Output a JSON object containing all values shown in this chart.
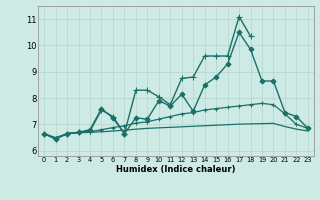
{
  "xlabel": "Humidex (Indice chaleur)",
  "background_color": "#ceeae4",
  "grid_color": "#b8d8d2",
  "line_color": "#1a7068",
  "xlim": [
    -0.5,
    23.5
  ],
  "ylim": [
    5.8,
    11.5
  ],
  "yticks": [
    6,
    7,
    8,
    9,
    10,
    11
  ],
  "xtick_labels": [
    "0",
    "1",
    "2",
    "3",
    "4",
    "5",
    "6",
    "7",
    "8",
    "9",
    "10",
    "11",
    "12",
    "13",
    "14",
    "15",
    "16",
    "17",
    "18",
    "19",
    "20",
    "21",
    "22",
    "23"
  ],
  "series": [
    {
      "x": [
        0,
        1,
        2,
        3,
        4,
        5,
        6,
        7,
        8,
        9,
        10,
        11,
        12,
        13,
        14,
        15,
        16,
        17,
        18,
        19,
        20,
        21,
        22,
        23
      ],
      "y": [
        6.65,
        6.45,
        6.65,
        6.7,
        6.75,
        7.55,
        7.3,
        6.65,
        8.3,
        8.3,
        8.05,
        7.75,
        8.75,
        8.8,
        9.6,
        9.6,
        9.6,
        11.1,
        10.35,
        null,
        null,
        null,
        null,
        null
      ],
      "marker": "+",
      "markersize": 4,
      "linewidth": 1.0
    },
    {
      "x": [
        0,
        1,
        2,
        3,
        4,
        5,
        6,
        7,
        8,
        9,
        10,
        11,
        12,
        13,
        14,
        15,
        16,
        17,
        18,
        19,
        20,
        21,
        22,
        23
      ],
      "y": [
        6.65,
        6.45,
        6.65,
        6.7,
        6.8,
        7.6,
        7.25,
        6.65,
        7.25,
        7.2,
        7.9,
        7.7,
        8.15,
        7.5,
        8.5,
        8.8,
        9.3,
        10.5,
        9.85,
        8.65,
        8.65,
        7.45,
        7.3,
        6.85
      ],
      "marker": "D",
      "markersize": 2.5,
      "linewidth": 1.0
    },
    {
      "x": [
        0,
        1,
        2,
        3,
        4,
        5,
        6,
        7,
        8,
        9,
        10,
        11,
        12,
        13,
        14,
        15,
        16,
        17,
        18,
        19,
        20,
        21,
        22,
        23
      ],
      "y": [
        6.65,
        6.5,
        6.65,
        6.7,
        6.72,
        6.8,
        6.88,
        6.95,
        7.05,
        7.1,
        7.2,
        7.3,
        7.4,
        7.45,
        7.55,
        7.6,
        7.65,
        7.7,
        7.75,
        7.8,
        7.75,
        7.4,
        7.0,
        6.85
      ],
      "marker": "+",
      "markersize": 3,
      "linewidth": 0.9
    },
    {
      "x": [
        0,
        1,
        2,
        3,
        4,
        5,
        6,
        7,
        8,
        9,
        10,
        11,
        12,
        13,
        14,
        15,
        16,
        17,
        18,
        19,
        20,
        21,
        22,
        23
      ],
      "y": [
        6.65,
        6.45,
        6.65,
        6.68,
        6.7,
        6.72,
        6.75,
        6.78,
        6.82,
        6.85,
        6.87,
        6.89,
        6.91,
        6.93,
        6.95,
        6.97,
        6.99,
        7.01,
        7.02,
        7.03,
        7.04,
        6.92,
        6.82,
        6.75
      ],
      "marker": null,
      "markersize": 0,
      "linewidth": 0.9
    }
  ]
}
